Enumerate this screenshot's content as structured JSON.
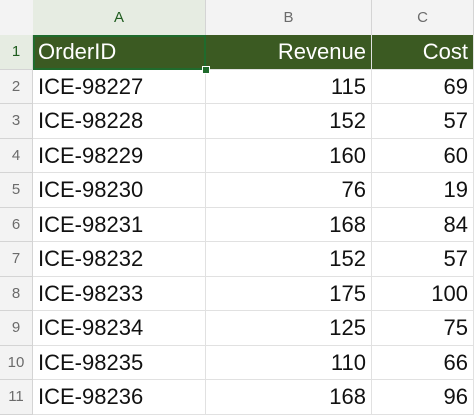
{
  "columns": [
    "A",
    "B",
    "C"
  ],
  "rows": [
    {
      "num": "1",
      "cells": [
        "OrderID",
        "Revenue",
        "Cost"
      ]
    },
    {
      "num": "2",
      "cells": [
        "ICE-98227",
        "115",
        "69"
      ]
    },
    {
      "num": "3",
      "cells": [
        "ICE-98228",
        "152",
        "57"
      ]
    },
    {
      "num": "4",
      "cells": [
        "ICE-98229",
        "160",
        "60"
      ]
    },
    {
      "num": "5",
      "cells": [
        "ICE-98230",
        "76",
        "19"
      ]
    },
    {
      "num": "6",
      "cells": [
        "ICE-98231",
        "168",
        "84"
      ]
    },
    {
      "num": "7",
      "cells": [
        "ICE-98232",
        "152",
        "57"
      ]
    },
    {
      "num": "8",
      "cells": [
        "ICE-98233",
        "175",
        "100"
      ]
    },
    {
      "num": "9",
      "cells": [
        "ICE-98234",
        "125",
        "75"
      ]
    },
    {
      "num": "10",
      "cells": [
        "ICE-98235",
        "110",
        "66"
      ]
    },
    {
      "num": "11",
      "cells": [
        "ICE-98236",
        "168",
        "96"
      ]
    }
  ],
  "selected_cell": "A1",
  "colors": {
    "header_fill": "#3b5a22",
    "header_text": "#ffffff",
    "selection": "#1f6b2c"
  }
}
